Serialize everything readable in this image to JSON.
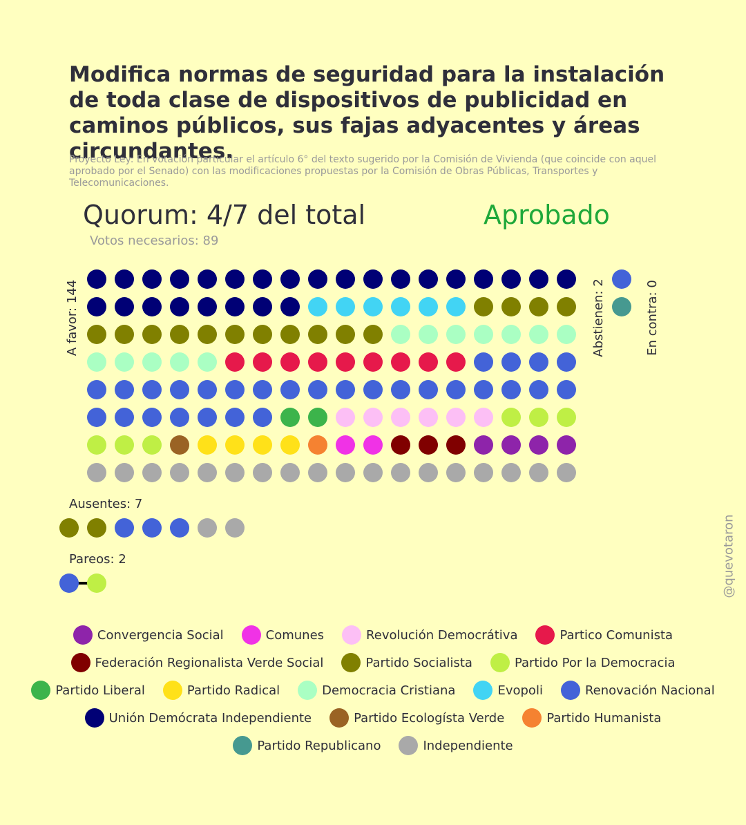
{
  "title": "Modifica normas de seguridad para la instalación de toda clase de dispositivos de publicidad en caminos públicos, sus fajas adyacentes y áreas circundantes.",
  "subtitle": "Proyecto Ley: En votación particular el artículo 6° del texto sugerido por la Comisión de Vivienda (que coincide con aquel aprobado por el Senado) con las modificaciones propuestas por la Comisión de Obras Públicas, Transportes y Telecomunicaciones.",
  "quorum": "Quorum: 4/7 del total",
  "result": "Aprobado",
  "votes_needed": "Votos necesarios: 89",
  "labels": {
    "favor": "A favor: 144",
    "abstain": "Abstienen: 2",
    "against": "En contra: 0",
    "absent": "Ausentes: 7",
    "paired": "Pareos: 2"
  },
  "credit": "@quevotaron",
  "chart_data": {
    "type": "dot-matrix",
    "parties": {
      "cs": {
        "name": "Convergencia Social",
        "color": "#8e24aa"
      },
      "com": {
        "name": "Comunes",
        "color": "#f032e6"
      },
      "rd": {
        "name": "Revolución Democrátiva",
        "color": "#fcbff5"
      },
      "pc": {
        "name": "Partico Comunista",
        "color": "#e6194b"
      },
      "frvs": {
        "name": "Federación Regionalista Verde Social",
        "color": "#800000"
      },
      "ps": {
        "name": "Partido Socialista",
        "color": "#808000"
      },
      "ppd": {
        "name": "Partido Por la Democracia",
        "color": "#bfef45"
      },
      "pl": {
        "name": "Partido Liberal",
        "color": "#3cb44b"
      },
      "pr": {
        "name": "Partido Radical",
        "color": "#ffe119"
      },
      "dc": {
        "name": "Democracia Cristiana",
        "color": "#aaffc3"
      },
      "evo": {
        "name": "Evopoli",
        "color": "#42d4f4"
      },
      "rn": {
        "name": "Renovación Nacional",
        "color": "#4363d8"
      },
      "udi": {
        "name": "Unión Demócrata Independiente",
        "color": "#000075"
      },
      "pev": {
        "name": "Partido Ecologísta Verde",
        "color": "#9a6324"
      },
      "ph": {
        "name": "Partido Humanista",
        "color": "#f58231"
      },
      "rep": {
        "name": "Partido Republicano",
        "color": "#469990"
      },
      "ind": {
        "name": "Independiente",
        "color": "#a9a9a9"
      }
    },
    "legend_order": [
      "cs",
      "com",
      "rd",
      "pc",
      "frvs",
      "ps",
      "ppd",
      "pl",
      "pr",
      "dc",
      "evo",
      "rn",
      "udi",
      "pev",
      "ph",
      "rep",
      "ind"
    ],
    "favor": {
      "total": 144,
      "columns": 18,
      "composition": [
        {
          "party": "udi",
          "count": 26
        },
        {
          "party": "evo",
          "count": 6
        },
        {
          "party": "ps",
          "count": 15
        },
        {
          "party": "dc",
          "count": 12
        },
        {
          "party": "pc",
          "count": 9
        },
        {
          "party": "rn",
          "count": 29
        },
        {
          "party": "pl",
          "count": 2
        },
        {
          "party": "rd",
          "count": 6
        },
        {
          "party": "ppd",
          "count": 6
        },
        {
          "party": "pev",
          "count": 1
        },
        {
          "party": "pr",
          "count": 4
        },
        {
          "party": "ph",
          "count": 1
        },
        {
          "party": "com",
          "count": 2
        },
        {
          "party": "frvs",
          "count": 3
        },
        {
          "party": "cs",
          "count": 4
        },
        {
          "party": "ind",
          "count": 18
        }
      ]
    },
    "abstain": {
      "total": 2,
      "members": [
        "rn",
        "rep"
      ]
    },
    "against": {
      "total": 0,
      "members": []
    },
    "absent": {
      "total": 7,
      "members": [
        "ps",
        "ps",
        "rn",
        "rn",
        "rn",
        "ind",
        "ind"
      ]
    },
    "paired": {
      "total": 2,
      "pairs": [
        [
          "rn",
          "ppd"
        ]
      ]
    }
  }
}
